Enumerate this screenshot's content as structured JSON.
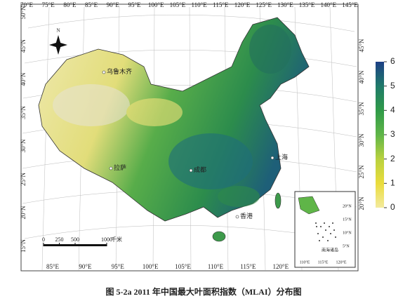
{
  "map": {
    "top_labels": [
      "70°E",
      "75°E",
      "80°E",
      "85°E",
      "90°E",
      "95°E",
      "100°E",
      "105°E",
      "110°E",
      "115°E",
      "120°E",
      "125°E",
      "130°E",
      "135°E",
      "140°E",
      "145°E"
    ],
    "left_labels": [
      "50°N",
      "45°N",
      "40°N",
      "35°N",
      "30°N",
      "25°N",
      "20°N",
      "15°N"
    ],
    "right_labels": [
      "45°N",
      "40°N",
      "35°N",
      "30°N",
      "25°N",
      "20°N"
    ],
    "bottom_labels": [
      "85°E",
      "90°E",
      "95°E",
      "100°E",
      "105°E",
      "110°E",
      "115°E",
      "120°E"
    ],
    "north": "N",
    "cities": [
      "乌鲁木齐",
      "拉萨",
      "成都",
      "上海",
      "香港"
    ],
    "scale_bar": {
      "ticks": [
        0,
        250,
        500,
        1000
      ],
      "unit": "千米"
    },
    "inset": {
      "lat_labels": [
        "20°N",
        "15°N",
        "10°N",
        "5°N"
      ],
      "lon_labels": [
        "110°E",
        "115°E",
        "120°E"
      ],
      "label": "南海诸岛"
    },
    "colorbar": {
      "ticks": [
        0,
        1,
        2,
        3,
        4,
        5,
        6
      ],
      "colors": [
        "#f3ea9e",
        "#eadc3c",
        "#b9d13f",
        "#5fb548",
        "#2f9a48",
        "#1f7a6a",
        "#1d3f86"
      ]
    }
  },
  "caption": "图 5-2a 2011 年中国最大叶面积指数（MLAI）分布图"
}
